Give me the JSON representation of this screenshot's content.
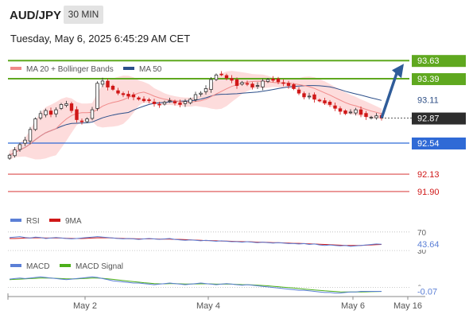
{
  "header": {
    "symbol": "AUD/JPY",
    "timeframe": "30 MIN",
    "datetime": "Tuesday, May 6, 2025 6:45:29 AM CET"
  },
  "colors": {
    "resistance": "#5fa81f",
    "support": "#2f6ad6",
    "red_level": "#d01818",
    "price_box": "#2d2d2d",
    "arrow": "#2f5c99",
    "bb_fill": "#fddcdc",
    "ma20": "#f08a8a",
    "ma50": "#2c4f8a",
    "candle_up": "#2f2f2f",
    "candle_down": "#d01818",
    "rsi": "#5b7fd6",
    "rsi_ma": "#d01818",
    "macd": "#5b7fd6",
    "macd_signal": "#4caf1a"
  },
  "chart_data": [
    {
      "type": "candlestick",
      "legend": [
        "MA 20 + Bollinger Bands",
        "MA 50"
      ],
      "x_ticks": [
        "May 2",
        "May 4",
        "May 6",
        "May 16"
      ],
      "ylim": [
        91.7,
        93.8
      ],
      "closes": [
        92.38,
        92.45,
        92.52,
        92.58,
        92.72,
        92.86,
        92.93,
        92.97,
        92.92,
        92.98,
        93.05,
        93.06,
        92.97,
        92.85,
        92.83,
        92.86,
        92.98,
        93.33,
        93.36,
        93.28,
        93.25,
        93.2,
        93.18,
        93.16,
        93.15,
        93.12,
        93.1,
        93.1,
        93.06,
        93.05,
        93.08,
        93.1,
        93.07,
        93.05,
        93.09,
        93.12,
        93.18,
        93.2,
        93.26,
        93.38,
        93.44,
        93.45,
        93.4,
        93.37,
        93.3,
        93.34,
        93.32,
        93.28,
        93.3,
        93.36,
        93.38,
        93.37,
        93.35,
        93.33,
        93.3,
        93.26,
        93.2,
        93.15,
        93.16,
        93.12,
        93.1,
        93.07,
        93.05,
        93.0,
        92.96,
        92.93,
        92.95,
        92.98,
        92.92,
        92.89,
        92.88,
        92.9,
        92.87
      ],
      "price_label": "92.87",
      "levels": [
        {
          "label": "93.63",
          "value": 93.63,
          "kind": "resistance"
        },
        {
          "label": "93.39",
          "value": 93.39,
          "kind": "resistance"
        },
        {
          "label": "93.11",
          "value": 93.11,
          "kind": "plain"
        },
        {
          "label": "92.54",
          "value": 92.54,
          "kind": "support"
        },
        {
          "label": "92.13",
          "value": 92.13,
          "kind": "red"
        },
        {
          "label": "91.90",
          "value": 91.9,
          "kind": "red"
        }
      ],
      "arrow": {
        "from_value": 92.87,
        "to_value": 93.63
      }
    },
    {
      "type": "line",
      "legend": [
        "RSI",
        "9MA"
      ],
      "ylim": [
        25,
        80
      ],
      "ticks": [
        {
          "label": "70",
          "value": 70
        },
        {
          "label": "30",
          "value": 30
        }
      ],
      "current_label": "43.64",
      "current_value": 43.64,
      "rsi": [
        58,
        59,
        60,
        58,
        57,
        59,
        58,
        56,
        57,
        58,
        57,
        56,
        55,
        56,
        57,
        58,
        59,
        60,
        59,
        58,
        57,
        56,
        55,
        56,
        55,
        54,
        55,
        56,
        55,
        54,
        55,
        56,
        54,
        53,
        52,
        53,
        52,
        51,
        52,
        51,
        50,
        51,
        50,
        49,
        49,
        48,
        49,
        48,
        47,
        48,
        47,
        46,
        47,
        46,
        45,
        45,
        44,
        45,
        43,
        44,
        42,
        41,
        42,
        41,
        40,
        41,
        39,
        40,
        41,
        42,
        43,
        44,
        43.64
      ],
      "rsi_ma": [
        56,
        56,
        56.5,
        57,
        57,
        57.5,
        57.5,
        57,
        57,
        57,
        57,
        56.5,
        56,
        56,
        56,
        56.5,
        57,
        57.5,
        57.5,
        57.5,
        57,
        56.5,
        56,
        55.5,
        55.5,
        55,
        55,
        55,
        55,
        54.5,
        54.5,
        54.5,
        54,
        54,
        53.5,
        53,
        52.5,
        52,
        51.5,
        51.5,
        51,
        50.5,
        50.5,
        50,
        49.5,
        49,
        49,
        48.5,
        48,
        48,
        47.5,
        47,
        47,
        46.5,
        46,
        45.5,
        45.5,
        45,
        44.5,
        44,
        43.5,
        43,
        42.5,
        42,
        41.5,
        41,
        41,
        41,
        41,
        41.5,
        42,
        42.5,
        43
      ]
    },
    {
      "type": "line",
      "legend": [
        "MACD",
        "MACD Signal"
      ],
      "ylim": [
        -0.12,
        0.28
      ],
      "ticks": [
        {
          "label": "0",
          "value": 0
        }
      ],
      "current_label": "-0.07",
      "current_value": -0.07,
      "macd": [
        0.15,
        0.16,
        0.17,
        0.16,
        0.17,
        0.18,
        0.19,
        0.18,
        0.17,
        0.16,
        0.15,
        0.14,
        0.15,
        0.16,
        0.17,
        0.18,
        0.19,
        0.18,
        0.16,
        0.14,
        0.12,
        0.11,
        0.1,
        0.09,
        0.08,
        0.08,
        0.07,
        0.06,
        0.05,
        0.06,
        0.07,
        0.08,
        0.07,
        0.06,
        0.05,
        0.06,
        0.07,
        0.08,
        0.07,
        0.06,
        0.05,
        0.06,
        0.07,
        0.06,
        0.05,
        0.04,
        0.05,
        0.04,
        0.03,
        0.02,
        0.01,
        0.0,
        -0.01,
        -0.02,
        -0.03,
        -0.04,
        -0.05,
        -0.05,
        -0.06,
        -0.07,
        -0.08,
        -0.09,
        -0.09,
        -0.1,
        -0.1,
        -0.09,
        -0.08,
        -0.08,
        -0.07,
        -0.07,
        -0.07,
        -0.07,
        -0.07
      ],
      "signal": [
        0.14,
        0.145,
        0.15,
        0.155,
        0.16,
        0.165,
        0.17,
        0.17,
        0.17,
        0.165,
        0.16,
        0.155,
        0.155,
        0.155,
        0.16,
        0.165,
        0.17,
        0.17,
        0.165,
        0.155,
        0.145,
        0.135,
        0.125,
        0.115,
        0.105,
        0.095,
        0.085,
        0.078,
        0.07,
        0.066,
        0.066,
        0.068,
        0.068,
        0.066,
        0.062,
        0.062,
        0.064,
        0.066,
        0.066,
        0.064,
        0.06,
        0.06,
        0.062,
        0.06,
        0.056,
        0.052,
        0.05,
        0.046,
        0.042,
        0.036,
        0.03,
        0.022,
        0.014,
        0.006,
        -0.002,
        -0.01,
        -0.02,
        -0.028,
        -0.036,
        -0.044,
        -0.052,
        -0.06,
        -0.066,
        -0.072,
        -0.078,
        -0.082,
        -0.082,
        -0.082,
        -0.08,
        -0.078,
        -0.076,
        -0.074,
        -0.072
      ]
    }
  ]
}
